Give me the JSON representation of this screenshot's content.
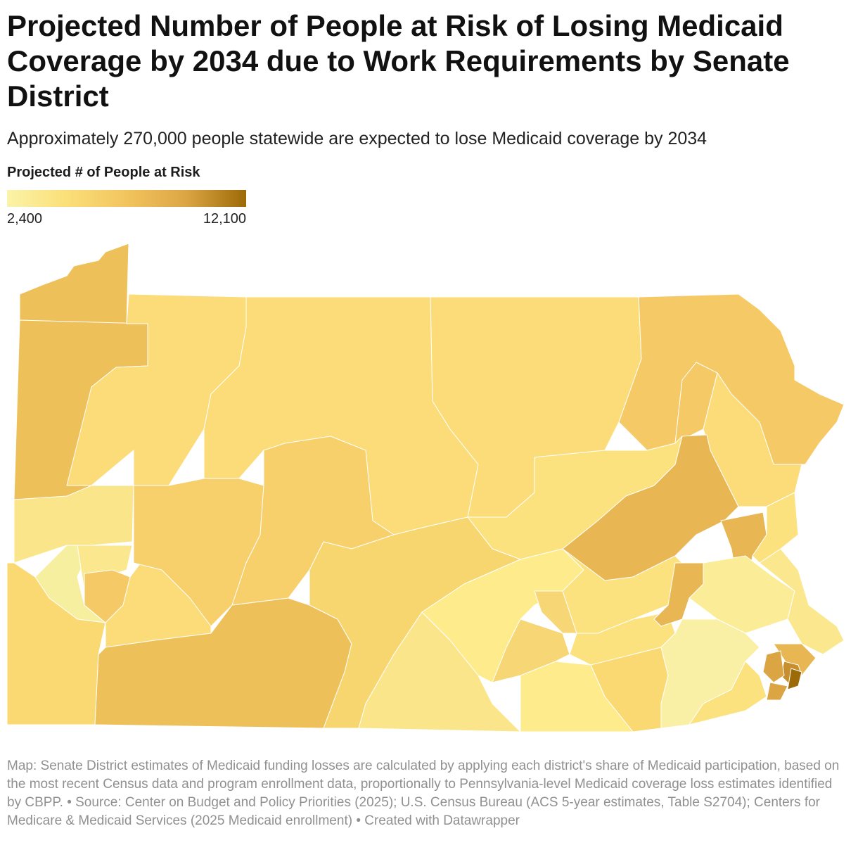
{
  "header": {
    "title": "Projected Number of People at Risk of Losing Medicaid Coverage by 2034 due to Work Requirements by Senate District",
    "subtitle": "Approximately 270,000 people statewide are expected to lose Medicaid coverage by 2034"
  },
  "legend": {
    "title": "Projected # of People at Risk",
    "min_label": "2,400",
    "max_label": "12,100",
    "min_value": 2400,
    "max_value": 12100,
    "colors": [
      "#fbf3a8",
      "#fbdf78",
      "#f2c45e",
      "#dca544",
      "#9c6a06"
    ]
  },
  "map": {
    "region": "Pennsylvania Senate Districts",
    "border_color": "#ffffff"
  },
  "footer": {
    "notes": "Map: Senate District estimates of Medicaid funding losses are calculated by applying each district's share of Medicaid participation, based on the most recent Census data and program enrollment data, proportionally to Pennsylvania-level Medicaid coverage loss estimates identified by CBPP.  • Source: Center on Budget and Policy Priorities (2025); U.S. Census Bureau (ACS 5-year estimates, Table S2704); Centers for Medicare & Medicaid Services (2025 Medicaid enrollment) • Created with Datawrapper"
  }
}
